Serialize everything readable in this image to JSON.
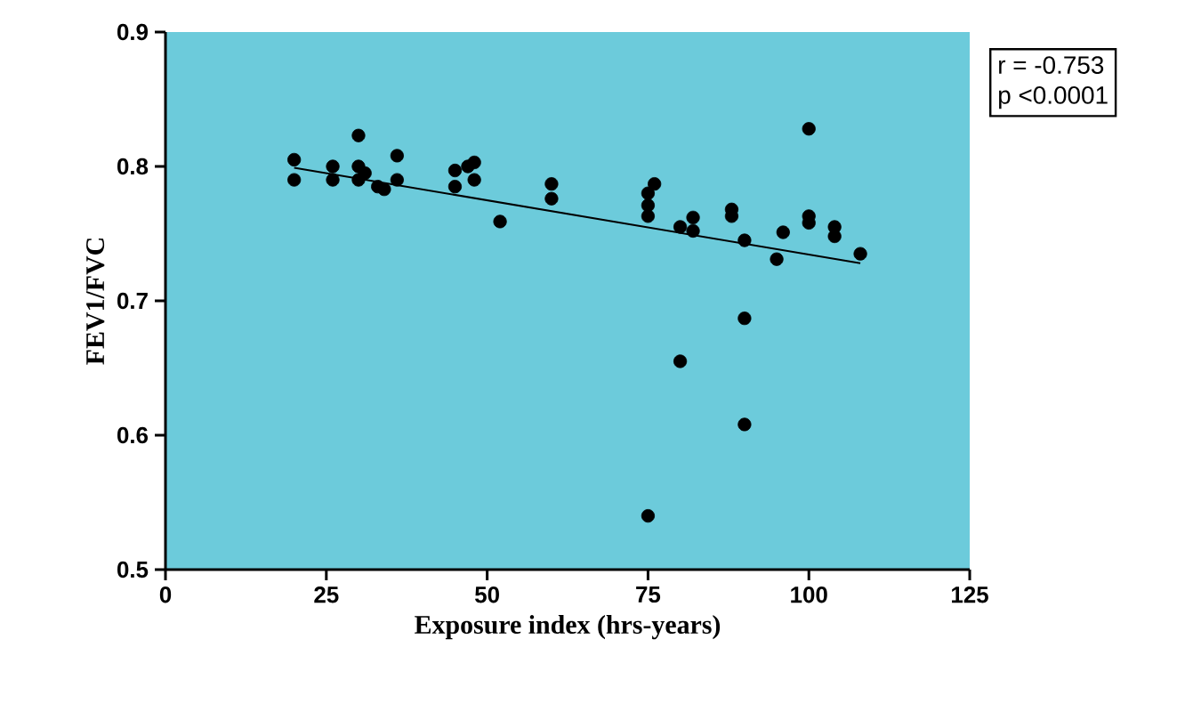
{
  "chart_data": {
    "type": "scatter",
    "xlabel": "Exposure index (hrs-years)",
    "ylabel": "FEV1/FVC",
    "xlim": [
      0,
      125
    ],
    "ylim": [
      0.5,
      0.9
    ],
    "xticks": [
      0,
      25,
      50,
      75,
      100,
      125
    ],
    "yticks": [
      0.5,
      0.6,
      0.7,
      0.8,
      0.9
    ],
    "grid": false,
    "legend": false,
    "annotations": [
      "r = -0.753",
      "p <0.0001"
    ],
    "series": [
      {
        "marker": "circle",
        "color": "#000000",
        "x": [
          20,
          20,
          26,
          26,
          30,
          30,
          30,
          31,
          33,
          34,
          36,
          36,
          45,
          45,
          47,
          48,
          48,
          52,
          60,
          60,
          75,
          75,
          75,
          76,
          75,
          80,
          80,
          82,
          82,
          88,
          88,
          90,
          90,
          90,
          95,
          96,
          100,
          100,
          100,
          104,
          104,
          108
        ],
        "values": [
          0.805,
          0.79,
          0.8,
          0.79,
          0.823,
          0.8,
          0.79,
          0.795,
          0.785,
          0.783,
          0.808,
          0.79,
          0.797,
          0.785,
          0.8,
          0.803,
          0.79,
          0.759,
          0.787,
          0.776,
          0.78,
          0.771,
          0.763,
          0.787,
          0.54,
          0.755,
          0.655,
          0.762,
          0.752,
          0.768,
          0.763,
          0.745,
          0.687,
          0.608,
          0.731,
          0.751,
          0.828,
          0.763,
          0.758,
          0.755,
          0.748,
          0.735
        ]
      },
      {
        "type": "line",
        "marker": "none",
        "color": "#000000",
        "x": [
          20,
          108
        ],
        "values": [
          0.799,
          0.728
        ]
      }
    ]
  }
}
